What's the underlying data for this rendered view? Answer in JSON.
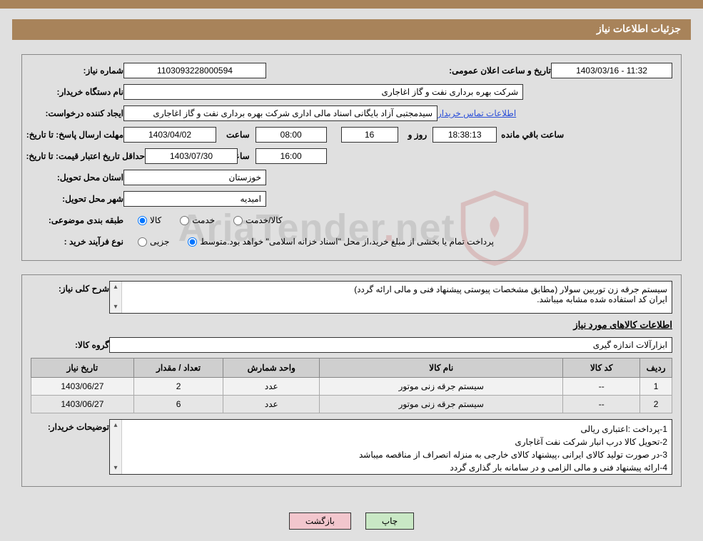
{
  "colors": {
    "header_bg": "#a8835a",
    "page_bg": "#e0e0e0",
    "border": "#888888",
    "link": "#2a4ed8",
    "btn_print_bg": "#c9e8c5",
    "btn_back_bg": "#f2c6cd",
    "watermark_shield": "#b52b27"
  },
  "header": {
    "title": "جزئیات اطلاعات نیاز"
  },
  "labels": {
    "need_number": "شماره نیاز:",
    "announce_datetime": "تاریخ و ساعت اعلان عمومی:",
    "buyer_org": "نام دستگاه خریدار:",
    "requester": "ایجاد کننده درخواست:",
    "buyer_contact_link": "اطلاعات تماس خریدار",
    "deadline": "مهلت ارسال پاسخ:",
    "until_date": "تا تاریخ:",
    "time_lbl": "ساعت",
    "days_and": "روز  و",
    "remaining": "ساعت باقي مانده",
    "min_validity": "حداقل تاریخ اعتبار قیمت:",
    "province": "استان محل تحویل:",
    "city": "شهر محل تحویل:",
    "category": "طبقه بندی موضوعی:",
    "buy_process": "نوع فرآیند خرید :",
    "general_desc": "شرح کلی نیاز:",
    "goods_info": "اطلاعات کالاهای مورد نیاز",
    "goods_group": "گروه کالا:",
    "buyer_notes": "توضیحات خریدار:"
  },
  "fields": {
    "need_number": "1103093228000594",
    "announce_datetime": "1403/03/16 - 11:32",
    "buyer_org": "شرکت بهره برداری نفت و گاز اغاجاری",
    "requester": "سیدمجتبی آزاد بایگانی اسناد مالی اداری شرکت بهره برداری نفت و گاز اغاجاری",
    "deadline_date": "1403/04/02",
    "deadline_time": "08:00",
    "days_remaining": "16",
    "time_remaining": "18:38:13",
    "validity_date": "1403/07/30",
    "validity_time": "16:00",
    "province": "خوزستان",
    "city": "اميديه",
    "goods_group": "ابزارآلات اندازه گیری"
  },
  "category_options": {
    "opt1": "کالا",
    "opt2": "خدمت",
    "opt3": "کالا/خدمت",
    "selected": "opt1"
  },
  "process_options": {
    "opt1": "جزیی",
    "opt2": "متوسط",
    "selected": "opt2",
    "note": "پرداخت تمام یا بخشی از مبلغ خرید،از محل \"اسناد خزانه اسلامی\" خواهد بود."
  },
  "general_desc": "سیستم جرقه زن توربین سولار (مطابق مشخصات پیوستی پیشنهاد فنی و مالی ارائه گردد)\nایران کد استفاده شده مشابه میباشد.",
  "table": {
    "columns": [
      "ردیف",
      "کد کالا",
      "نام کالا",
      "واحد شمارش",
      "تعداد / مقدار",
      "تاریخ نیاز"
    ],
    "col_widths_pct": [
      5,
      12,
      38,
      15,
      14,
      16
    ],
    "rows": [
      [
        "1",
        "--",
        "سیستم جرقه زنی موتور",
        "عدد",
        "2",
        "1403/06/27"
      ],
      [
        "2",
        "--",
        "سیستم جرقه زنی موتور",
        "عدد",
        "6",
        "1403/06/27"
      ]
    ]
  },
  "buyer_notes": "1-پرداخت :اعتباری ریالی\n2-تحویل کالا درب انبار شرکت نفت آغاجاری\n3-در صورت تولید کالای ایرانی ،پیشنهاد کالای خارجی به منزله انصراف از مناقصه میباشد\n4-ارائه پیشنهاد فنی و مالی الزامی و در سامانه بار گذاری گردد",
  "buttons": {
    "print": "چاپ",
    "back": "بازگشت"
  },
  "watermark": {
    "text_main": "AriaTender",
    "text_suffix": "net"
  }
}
